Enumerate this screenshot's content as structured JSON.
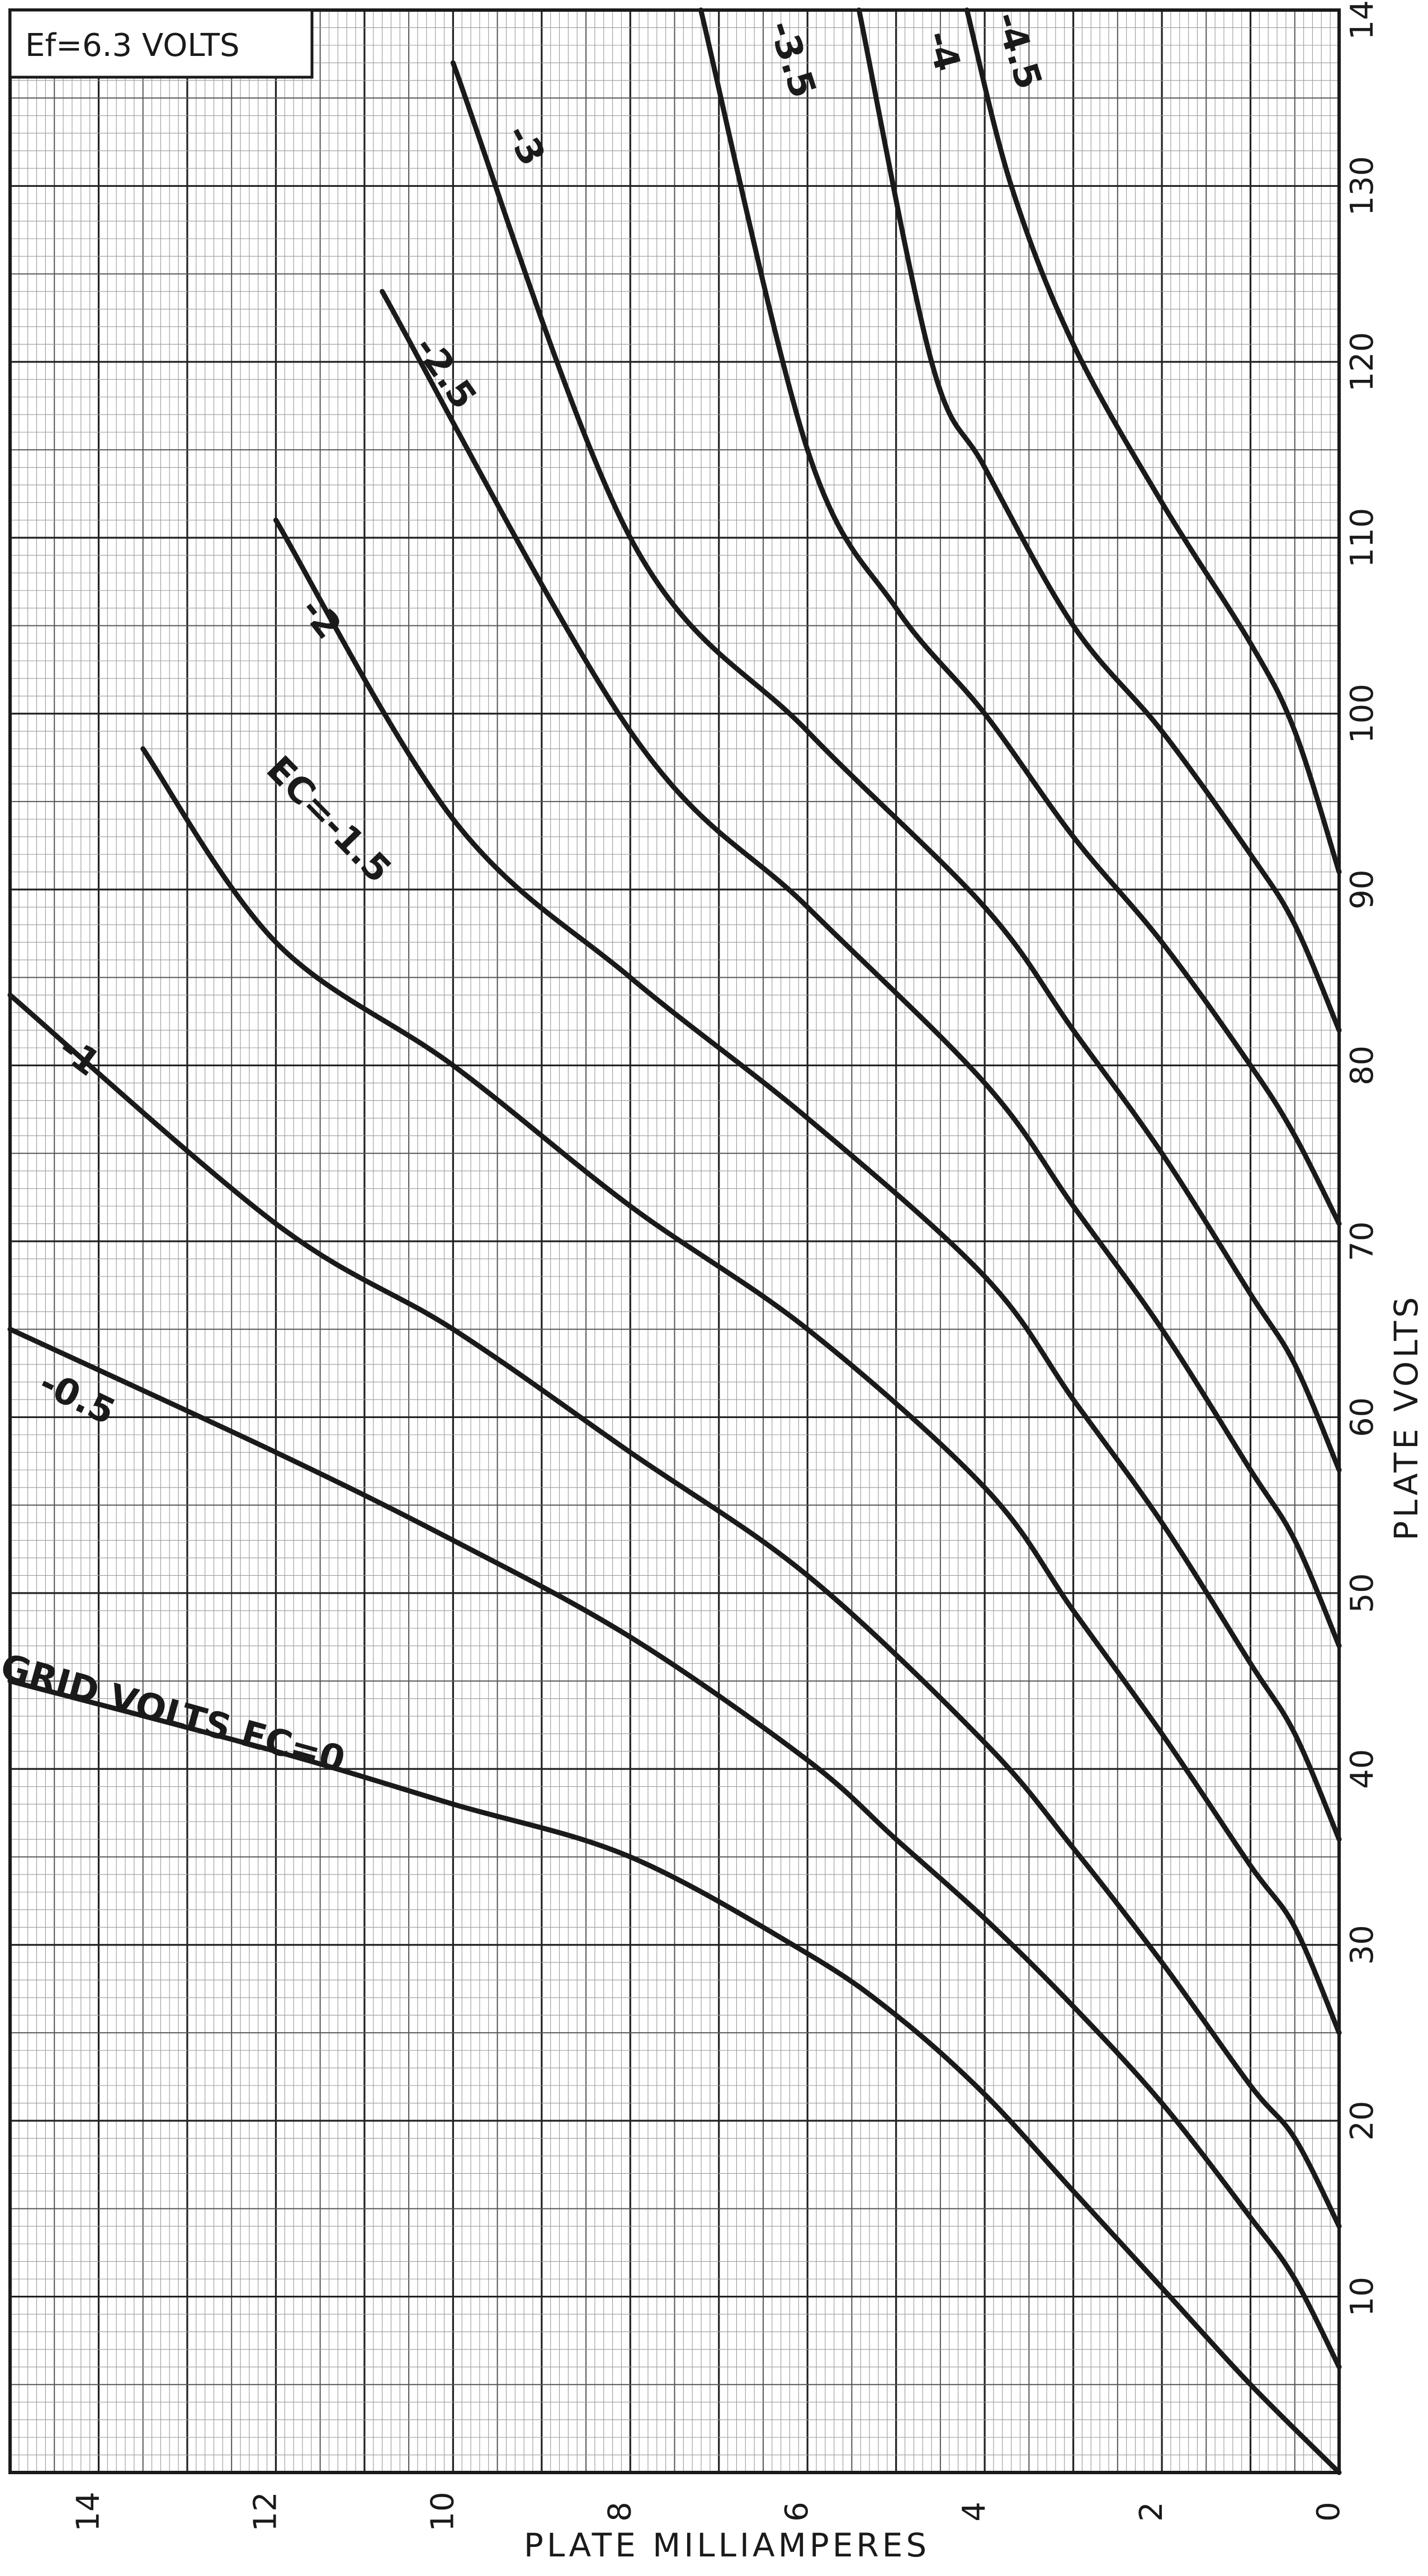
{
  "chart_data": {
    "type": "line",
    "note": "Ef=6.3 VOLTS",
    "xlabel": "PLATE MILLIAMPERES",
    "ylabel": "PLATE VOLTS",
    "x_axis_reversed": true,
    "xlim": [
      0,
      15
    ],
    "ylim": [
      0,
      140
    ],
    "xticks": [
      0,
      2,
      4,
      6,
      8,
      10,
      12,
      14
    ],
    "xtick_labels": [
      "0",
      "2",
      "4",
      "6",
      "8",
      "10",
      "12",
      "14"
    ],
    "yticks": [
      10,
      20,
      30,
      40,
      50,
      60,
      70,
      80,
      90,
      100,
      110,
      120,
      130,
      140
    ],
    "ytick_labels": [
      "10",
      "20",
      "30",
      "40",
      "50",
      "60",
      "70",
      "80",
      "90",
      "100",
      "110",
      "120",
      "130",
      "140"
    ],
    "grid": true,
    "series": [
      {
        "label": "GRID VOLTS EC=0",
        "points": [
          [
            0,
            0
          ],
          [
            1,
            5
          ],
          [
            2,
            10.5
          ],
          [
            3,
            16
          ],
          [
            4,
            21.5
          ],
          [
            5,
            26
          ],
          [
            6,
            29.5
          ],
          [
            8,
            35
          ],
          [
            10,
            38
          ],
          [
            12,
            41
          ],
          [
            15,
            45
          ]
        ]
      },
      {
        "label": "-0.5",
        "points": [
          [
            0,
            6
          ],
          [
            0.5,
            11
          ],
          [
            1,
            14.5
          ],
          [
            2,
            21
          ],
          [
            3,
            26.5
          ],
          [
            4,
            31.5
          ],
          [
            5,
            36
          ],
          [
            6,
            40.5
          ],
          [
            8,
            47.5
          ],
          [
            10,
            53
          ],
          [
            12,
            58
          ],
          [
            15,
            65
          ]
        ]
      },
      {
        "label": "-1",
        "points": [
          [
            0,
            14
          ],
          [
            0.5,
            19
          ],
          [
            1,
            22
          ],
          [
            2,
            29
          ],
          [
            3,
            35.5
          ],
          [
            4,
            41.5
          ],
          [
            6,
            51
          ],
          [
            8,
            58
          ],
          [
            10,
            65
          ],
          [
            12,
            71
          ],
          [
            15,
            84
          ]
        ]
      },
      {
        "label": "EC=-1.5",
        "points": [
          [
            0,
            25
          ],
          [
            0.5,
            31
          ],
          [
            1,
            34.5
          ],
          [
            2,
            42
          ],
          [
            3,
            49
          ],
          [
            4,
            56
          ],
          [
            6,
            65
          ],
          [
            8,
            72
          ],
          [
            10,
            80
          ],
          [
            12,
            87
          ],
          [
            13.5,
            98
          ]
        ]
      },
      {
        "label": "-2",
        "points": [
          [
            0,
            36
          ],
          [
            0.5,
            42
          ],
          [
            1,
            46
          ],
          [
            2,
            54
          ],
          [
            3,
            61
          ],
          [
            4,
            68
          ],
          [
            6,
            77
          ],
          [
            8,
            85
          ],
          [
            10,
            94
          ],
          [
            12,
            111
          ]
        ]
      },
      {
        "label": "-2.5",
        "points": [
          [
            0,
            47
          ],
          [
            0.5,
            53
          ],
          [
            1,
            57
          ],
          [
            2,
            65
          ],
          [
            3,
            72
          ],
          [
            4,
            79
          ],
          [
            6,
            89
          ],
          [
            8,
            99
          ],
          [
            10.8,
            124
          ]
        ]
      },
      {
        "label": "-3",
        "points": [
          [
            0,
            57
          ],
          [
            0.5,
            63
          ],
          [
            1,
            67
          ],
          [
            2,
            75
          ],
          [
            3,
            82
          ],
          [
            4,
            89
          ],
          [
            6,
            99
          ],
          [
            8,
            110
          ],
          [
            10,
            137
          ]
        ]
      },
      {
        "label": "-3.5",
        "points": [
          [
            0,
            71
          ],
          [
            0.5,
            76
          ],
          [
            1,
            80
          ],
          [
            2,
            87
          ],
          [
            3,
            93
          ],
          [
            4,
            100
          ],
          [
            5,
            106
          ],
          [
            6,
            115
          ],
          [
            7.3,
            142
          ]
        ]
      },
      {
        "label": "-4",
        "points": [
          [
            0,
            82
          ],
          [
            0.5,
            88
          ],
          [
            1,
            92
          ],
          [
            2,
            99
          ],
          [
            3,
            105
          ],
          [
            4,
            114
          ],
          [
            4.6,
            120
          ],
          [
            5.5,
            142
          ]
        ]
      },
      {
        "label": "-4.5",
        "points": [
          [
            0,
            91
          ],
          [
            0.5,
            99
          ],
          [
            1,
            104
          ],
          [
            2,
            112
          ],
          [
            3,
            121
          ],
          [
            3.7,
            130
          ],
          [
            4.3,
            142
          ]
        ]
      }
    ],
    "curve_labels": [
      "GRID VOLTS EC=0",
      "-0.5",
      "-1",
      "EC=-1.5",
      "-2",
      "-2.5",
      "-3",
      "-3.5",
      "-4",
      "-4.5"
    ]
  }
}
